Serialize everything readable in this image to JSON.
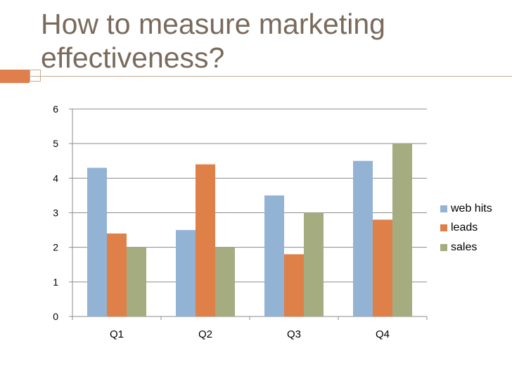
{
  "slide": {
    "title": "How to measure marketing effectiveness?"
  },
  "chart_data": {
    "type": "bar",
    "title": "",
    "xlabel": "",
    "ylabel": "",
    "categories": [
      "Q1",
      "Q2",
      "Q3",
      "Q4"
    ],
    "ylim": [
      0,
      6
    ],
    "yticks": [
      0,
      1,
      2,
      3,
      4,
      5,
      6
    ],
    "grid": true,
    "legend_position": "right",
    "series": [
      {
        "name": "web hits",
        "color": "#93b3d4",
        "values": [
          4.3,
          2.5,
          3.5,
          4.5
        ]
      },
      {
        "name": "leads",
        "color": "#df8048",
        "values": [
          2.4,
          4.4,
          1.8,
          2.8
        ]
      },
      {
        "name": "sales",
        "color": "#a5ac80",
        "values": [
          2.0,
          2.0,
          3.0,
          5.0
        ]
      }
    ]
  }
}
